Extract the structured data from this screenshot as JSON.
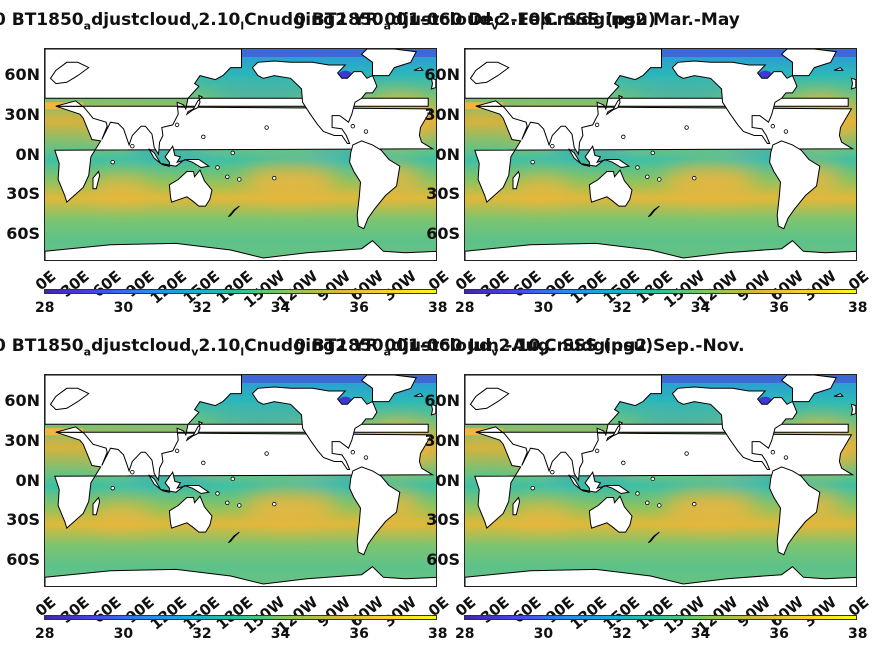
{
  "panels": [
    {
      "title_parts": {
        "a": "0 BT1850",
        "b": "djustcloud",
        "c": "2.10",
        "d": "Cnudging2 YR 001-060 Dec.-Feb. SSS (psu)"
      },
      "title_sub_a": "a",
      "title_sub_b": "v",
      "title_sub_c": "l",
      "season": "Dec.-Feb."
    },
    {
      "title_parts": {
        "a": "0 BT1850",
        "b": "djustcloud",
        "c": "2.10",
        "d": "Cnudging2 Mar.-May"
      },
      "title_sub_a": "a",
      "title_sub_b": "v",
      "title_sub_c": "l",
      "season": "Mar.-May"
    },
    {
      "title_parts": {
        "a": "0 BT1850",
        "b": "djustcloud",
        "c": "2.10",
        "d": "Cnudging2 YR 001-060 Jun.-Aug. SSS (psu)"
      },
      "title_sub_a": "a",
      "title_sub_b": "v",
      "title_sub_c": "l",
      "season": "Jun.-Aug."
    },
    {
      "title_parts": {
        "a": "0 BT1850",
        "b": "djustcloud",
        "c": "2.10",
        "d": "Cnudging2 Sep.-Nov."
      },
      "title_sub_a": "a",
      "title_sub_b": "v",
      "title_sub_c": "l",
      "season": "Sep.-Nov."
    }
  ],
  "lat_labels": [
    "60N",
    "30N",
    "0N",
    "30S",
    "60S"
  ],
  "lon_labels": [
    "0E",
    "30E",
    "60E",
    "90E",
    "120E",
    "150E",
    "180E",
    "150W",
    "120W",
    "90W",
    "60W",
    "30W",
    "0E"
  ],
  "colorbar": {
    "ticks": [
      "28",
      "30",
      "32",
      "34",
      "36",
      "38"
    ],
    "min": 28,
    "max": 38,
    "colors": [
      "#3e26a8",
      "#4743f0",
      "#2f86ef",
      "#12b1d4",
      "#2ec497",
      "#8bc65a",
      "#d6ba39",
      "#fbd22c",
      "#f9fb15"
    ]
  },
  "colors": {
    "ocean_base": "#6cc27f",
    "salty": "#f0b53d",
    "fresh": "#24a2c9",
    "very_fresh": "#4f3fd4",
    "land": "#ffffff",
    "coast": "#000000"
  }
}
